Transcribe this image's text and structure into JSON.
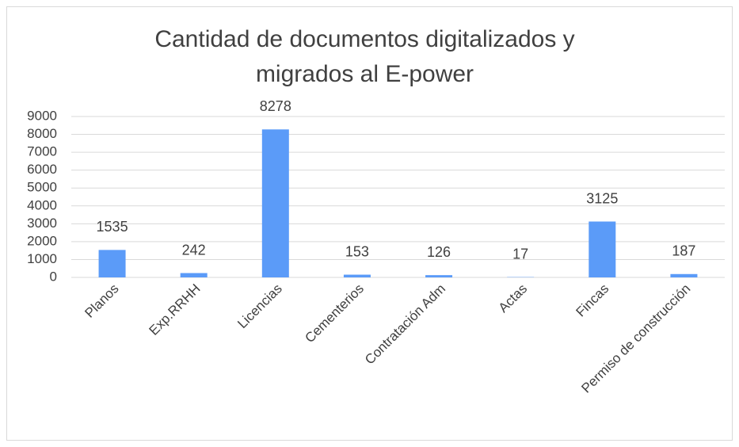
{
  "chart_data": {
    "type": "bar",
    "title": "Cantidad de documentos digitalizados y migrados al E-power",
    "categories": [
      "Planos",
      "Exp.RRHH",
      "Licencias",
      "Cementerios",
      "Contratación Adm",
      "Actas",
      "Fincas",
      "Permiso de construcción"
    ],
    "values": [
      1535,
      242,
      8278,
      153,
      126,
      17,
      3125,
      187
    ],
    "color": "#5b9bf8",
    "ylim": [
      0,
      9000
    ],
    "yticks": [
      0,
      1000,
      2000,
      3000,
      4000,
      5000,
      6000,
      7000,
      8000,
      9000
    ],
    "grid": true
  }
}
